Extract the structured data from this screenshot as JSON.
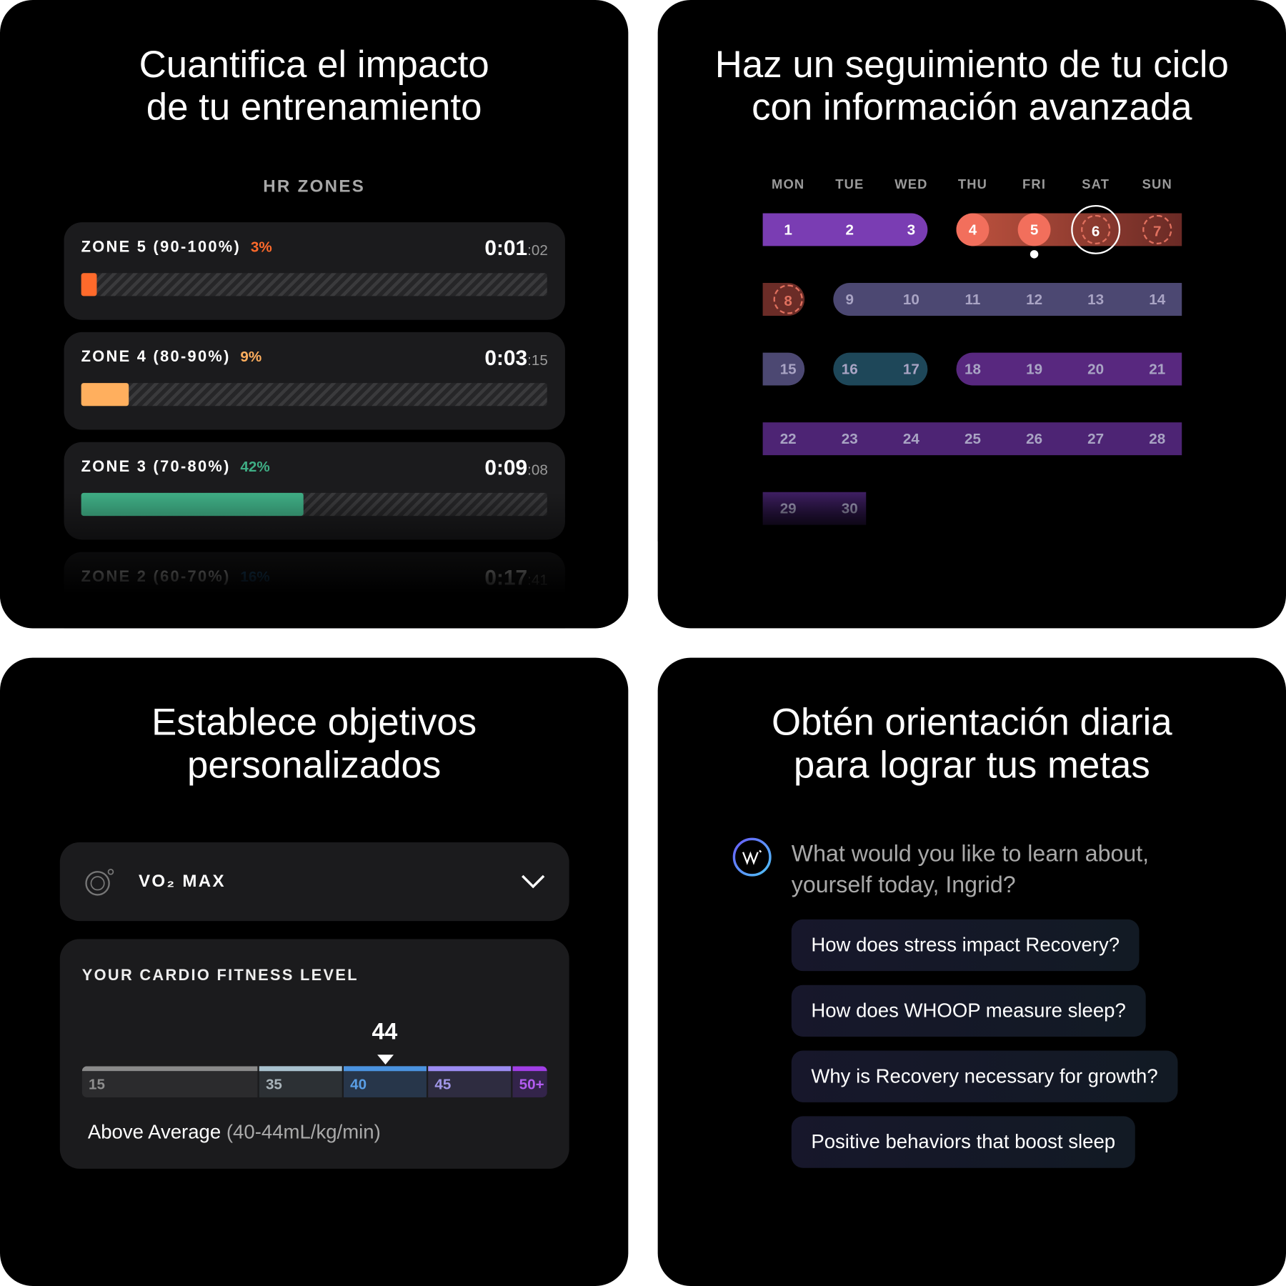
{
  "training": {
    "title": [
      "Cuantifica el impacto",
      "de tu entrenamiento"
    ],
    "heading": "HR ZONES",
    "zones": [
      {
        "label": "ZONE 5 (90-100%)",
        "percent": 3,
        "percent_label": "3%",
        "time": "0:01",
        "seconds": ":02",
        "color": "#ff6a2b"
      },
      {
        "label": "ZONE 4 (80-90%)",
        "percent": 9,
        "percent_label": "9%",
        "time": "0:03",
        "seconds": ":15",
        "color": "#ffaf5e"
      },
      {
        "label": "ZONE 3 (70-80%)",
        "percent": 42,
        "percent_label": "42%",
        "time": "0:09",
        "seconds": ":08",
        "color": "#3fae85"
      },
      {
        "label": "ZONE 2 (60-70%)",
        "percent": 16,
        "percent_label": "16%",
        "time": "0:17",
        "seconds": ":41",
        "color": "#2b6fa8"
      }
    ]
  },
  "cycle": {
    "title": [
      "Haz un seguimiento de tu ciclo",
      "con información avanzada"
    ],
    "weekdays": [
      "MON",
      "TUE",
      "WED",
      "THU",
      "FRI",
      "SAT",
      "SUN"
    ],
    "days": [
      1,
      2,
      3,
      4,
      5,
      6,
      7,
      8,
      9,
      10,
      11,
      12,
      13,
      14,
      15,
      16,
      17,
      18,
      19,
      20,
      21,
      22,
      23,
      24,
      25,
      26,
      27,
      28,
      29,
      30
    ]
  },
  "goals": {
    "title": [
      "Establece objetivos",
      "personalizados"
    ],
    "metric": "VO₂ MAX",
    "heading": "YOUR CARDIO FITNESS LEVEL",
    "value": 44,
    "scale": [
      "15",
      "35",
      "40",
      "45",
      "50+"
    ],
    "rating": "Above Average",
    "range": "(40-44mL/kg/min)"
  },
  "guidance": {
    "title": [
      "Obtén orientación diaria",
      "para lograr tus metas"
    ],
    "question": [
      "What would you like to learn about,",
      "yourself today, Ingrid?"
    ],
    "suggestions": [
      "How does stress impact Recovery?",
      "How does WHOOP measure sleep?",
      "Why is Recovery necessary for growth?",
      "Positive behaviors that boost sleep"
    ]
  }
}
